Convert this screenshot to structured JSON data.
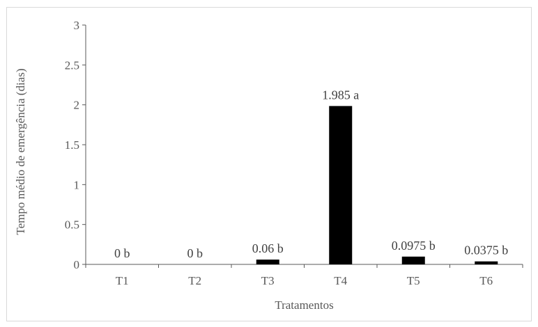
{
  "chart_data": {
    "type": "bar",
    "title": "",
    "xlabel": "Tratamentos",
    "ylabel": "Tempo médio de emergência (dias)",
    "categories": [
      "T1",
      "T2",
      "T3",
      "T4",
      "T5",
      "T6"
    ],
    "values": [
      0,
      0,
      0.06,
      1.985,
      0.0975,
      0.0375
    ],
    "data_labels": [
      "0 b",
      "0 b",
      "0.06 b",
      "1.985 a",
      "0.0975 b",
      "0.0375 b"
    ],
    "ylim": [
      0,
      3
    ],
    "yticks": [
      "0",
      "0.5",
      "1",
      "1.5",
      "2",
      "2.5",
      "3"
    ],
    "grid": false,
    "legend": "none",
    "colors": {
      "bar": "#000000",
      "axis": "#595959",
      "frame": "#d9d9d9"
    }
  }
}
